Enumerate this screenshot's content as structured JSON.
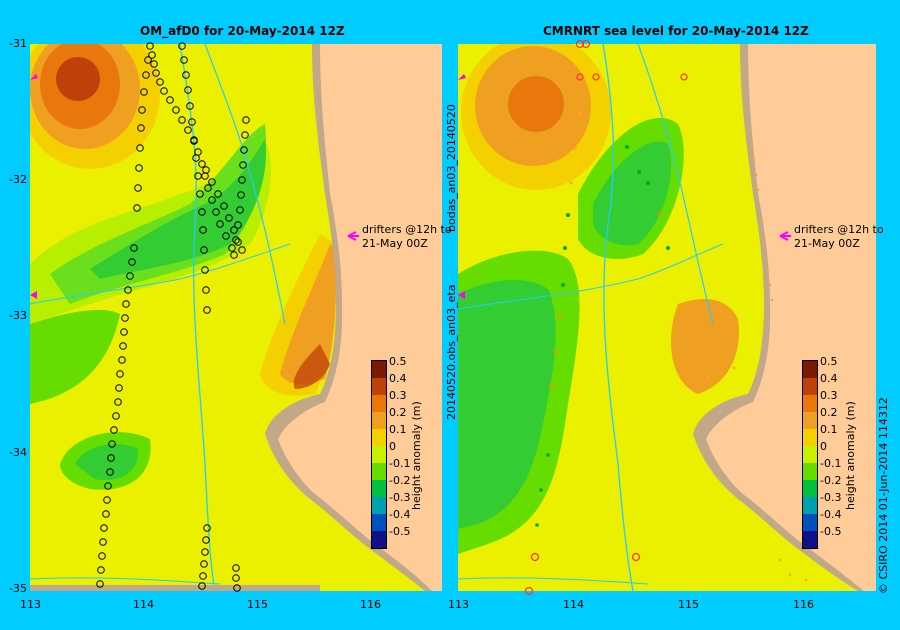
{
  "left_panel": {
    "title": "OM_afD0 for 20-May-2014 12Z"
  },
  "right_panel": {
    "title": "CMRNRT sea level  for 20-May-2014 12Z"
  },
  "y_ticks": [
    "-31",
    "-32",
    "-33",
    "-34",
    "-35"
  ],
  "x_ticks": [
    "113",
    "114",
    "115",
    "116"
  ],
  "drifter_note": {
    "line1": "drifters @12h to",
    "line2": "21-May 00Z"
  },
  "colorbar": {
    "label": "height anomaly (m)",
    "ticks": [
      "0.5",
      "0.4",
      "0.3",
      "0.2",
      "0.1",
      "0",
      "-0.1",
      "-0.2",
      "-0.3",
      "-0.4",
      "-0.5"
    ],
    "colors": [
      "#7A1A00",
      "#C0400A",
      "#E8780C",
      "#F0A020",
      "#F5D000",
      "#C8F000",
      "#66DD00",
      "#00C040",
      "#00A0B0",
      "#0050C0",
      "#10108A"
    ]
  },
  "side_label_bottom": "20140520.obs_an03_eta",
  "side_label_top": "bodas_an03_20140520",
  "copyright": "© CSIRO 2014  01-Jun-2014 114312",
  "colors": {
    "background": "#00CCFF",
    "land": "#FFCC99",
    "coast": "#C0A888",
    "river": "#22CCFF",
    "drifter": "#FF00FF"
  }
}
